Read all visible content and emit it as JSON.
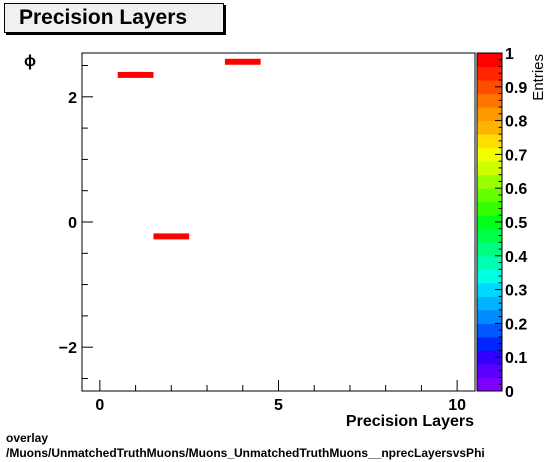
{
  "title": "Precision Layers",
  "footer": {
    "line1": "overlay",
    "line2": "/Muons/UnmatchedTruthMuons/Muons_UnmatchedTruthMuons__nprecLayersvsPhi"
  },
  "colors": {
    "marker": "#ff0000"
  },
  "chart_data": {
    "type": "heatmap",
    "xlabel": "Precision Layers",
    "ylabel": "ϕ",
    "zlabel": "Entries",
    "xlim": [
      -0.5,
      10.5
    ],
    "ylim": [
      -2.7,
      2.7
    ],
    "zlim": [
      0,
      1
    ],
    "x_ticks": [
      {
        "value": 0,
        "label": "0"
      },
      {
        "value": 5,
        "label": "5"
      },
      {
        "value": 10,
        "label": "10"
      }
    ],
    "y_ticks": [
      {
        "value": -2,
        "label": "−2"
      },
      {
        "value": 0,
        "label": "0"
      },
      {
        "value": 2,
        "label": "2"
      }
    ],
    "z_ticks": [
      {
        "value": 0,
        "label": "0"
      },
      {
        "value": 0.1,
        "label": "0.1"
      },
      {
        "value": 0.2,
        "label": "0.2"
      },
      {
        "value": 0.3,
        "label": "0.3"
      },
      {
        "value": 0.4,
        "label": "0.4"
      },
      {
        "value": 0.5,
        "label": "0.5"
      },
      {
        "value": 0.6,
        "label": "0.6"
      },
      {
        "value": 0.7,
        "label": "0.7"
      },
      {
        "value": 0.8,
        "label": "0.8"
      },
      {
        "value": 0.9,
        "label": "0.9"
      },
      {
        "value": 1,
        "label": "1"
      }
    ],
    "cells": [
      {
        "x0": 0.5,
        "x1": 1.5,
        "y": 2.35,
        "value": 1
      },
      {
        "x0": 1.5,
        "x1": 2.5,
        "y": -0.23,
        "value": 1
      },
      {
        "x0": 3.5,
        "x1": 4.5,
        "y": 2.56,
        "value": 1
      }
    ],
    "palette": [
      "#7f00ff",
      "#5a00ff",
      "#3300ff",
      "#0026ff",
      "#0059ff",
      "#008cff",
      "#00b3ff",
      "#00d9ff",
      "#00ffe5",
      "#00ffb3",
      "#00ff80",
      "#00ff4d",
      "#00ff1a",
      "#33ff00",
      "#66ff00",
      "#99ff00",
      "#ccff00",
      "#f2ff00",
      "#ffdd00",
      "#ffb300",
      "#ff9900",
      "#ff7300",
      "#ff4d00",
      "#ff2600",
      "#ff0000"
    ]
  }
}
